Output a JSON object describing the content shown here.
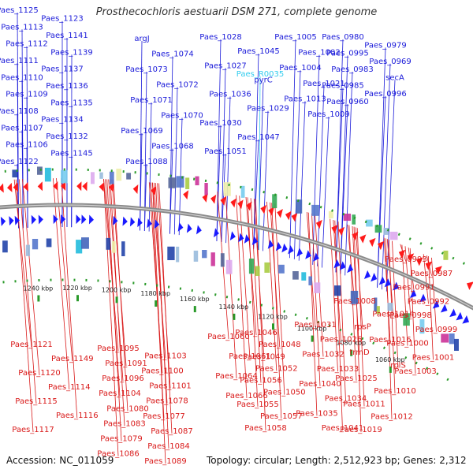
{
  "title": "Prosthecochloris aestuarii DSM 271, complete genome",
  "footer": {
    "accession": "Accession: NC_011059",
    "summary": "Topology: circular; Length: 2,512,923 bp; Genes: 2,312"
  },
  "colors": {
    "forward_gene": "#1a1aff",
    "reverse_gene": "#ff1a1a",
    "forward_label": "#1a1ad9",
    "reverse_label": "#d91a1a",
    "rna_label": "#33ccee",
    "backbone": "#8a8a8a",
    "scale_tick": "#2a9a2a"
  },
  "scale_labels": [
    "1060 kbp",
    "1080 kbp",
    "1100 kbp",
    "1120 kbp",
    "1140 kbp",
    "1160 kbp",
    "1180 kbp",
    "1200 kbp",
    "1220 kbp",
    "1240 kbp"
  ],
  "forward_labels": [
    "Paes_1125",
    "Paes_1123",
    "Paes_1113",
    "Paes_1141",
    "Paes_1112",
    "Paes_1139",
    "Paes_1111",
    "Paes_1137",
    "Paes_1110",
    "Paes_1136",
    "Paes_1109",
    "Paes_1135",
    "Paes_1108",
    "Paes_1134",
    "Paes_1107",
    "Paes_1132",
    "Paes_1106",
    "Paes_1145",
    "Paes_1122",
    "argJ",
    "Paes_1074",
    "Paes_1073",
    "Paes_1072",
    "Paes_1071",
    "Paes_1070",
    "Paes_1069",
    "Paes_1068",
    "Paes_1088",
    "Paes_1028",
    "Paes_1045",
    "Paes_1027",
    "pyrC",
    "Paes_1036",
    "Paes_1029",
    "Paes_1030",
    "Paes_1047",
    "Paes_1051",
    "Paes_1005",
    "Paes_1002",
    "Paes_1004",
    "Paes_1021",
    "Paes_1013",
    "Paes_1009",
    "Paes_0980",
    "Paes_0979",
    "Paes_0995",
    "Paes_0969",
    "Paes_0983",
    "secA",
    "Paes_0985",
    "Paes_0996",
    "Paes_0960"
  ],
  "rna_labels": [
    "Paes_R0035"
  ],
  "reverse_labels": [
    "Paes_1121",
    "Paes_1149",
    "Paes_1120",
    "Paes_1114",
    "Paes_1115",
    "Paes_1116",
    "Paes_1117",
    "Paes_1095",
    "Paes_1103",
    "Paes_1091",
    "Paes_1100",
    "Paes_1096",
    "Paes_1101",
    "Paes_1104",
    "Paes_1078",
    "Paes_1080",
    "Paes_1077",
    "Paes_1083",
    "Paes_1087",
    "Paes_1079",
    "Paes_1084",
    "Paes_1086",
    "Paes_1089",
    "Paes_1060",
    "Paes_1061",
    "Paes_1064",
    "Paes_1066",
    "Paes_1046",
    "Paes_1048",
    "Paes_1049",
    "Paes_1052",
    "Paes_1056",
    "Paes_1050",
    "Paes_1055",
    "Paes_1057",
    "Paes_1058",
    "Paes_1031",
    "Paes_1026",
    "Paes_1032",
    "Paes_1033",
    "Paes_1040",
    "Paes_1034",
    "Paes_1035",
    "Paes_1041",
    "Paes_1008",
    "Paes_1014",
    "rpsP",
    "Paes_1016",
    "trmD",
    "rplS",
    "Paes_1025",
    "Paes_1010",
    "Paes_1011",
    "Paes_1012",
    "Paes_1019",
    "Paes_0993",
    "Paes_0987",
    "Paes_0991",
    "Paes_0992",
    "Paes_0998",
    "Paes_0999",
    "Paes_1000",
    "Paes_1001",
    "Paes_1003"
  ]
}
